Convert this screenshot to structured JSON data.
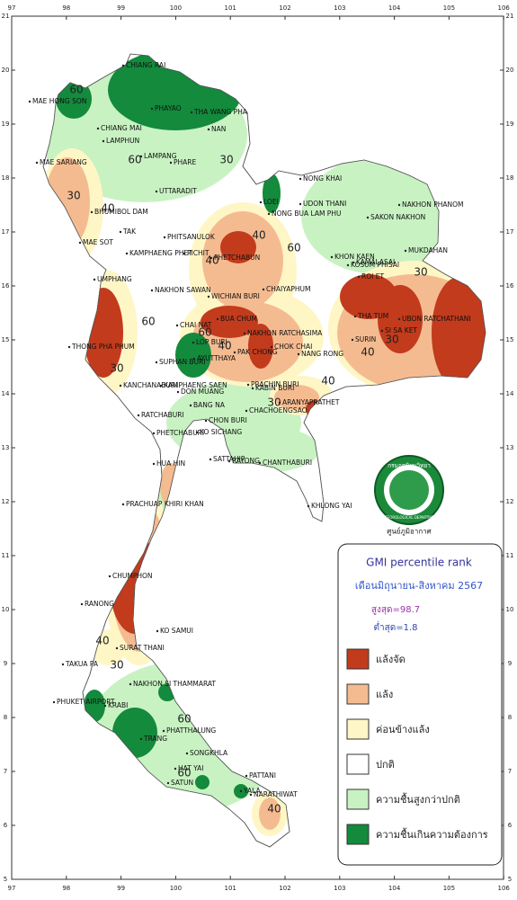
{
  "title": "GMI percentile rank",
  "period": "เดือนมิถุนายน-สิงหาคม 2567",
  "max_label": "สูงสุด=98.7",
  "min_label": "ต่ำสุด=1.8",
  "legend": [
    {
      "label": "แล้งจัด",
      "color": "#c23b1c"
    },
    {
      "label": "แล้ง",
      "color": "#f5bb90"
    },
    {
      "label": "ค่อนข้างแล้ง",
      "color": "#fff6c6"
    },
    {
      "label": "ปกติ",
      "color": "#ffffff"
    },
    {
      "label": "ความชื้นสูงกว่าปกติ",
      "color": "#c8f2c2"
    },
    {
      "label": "ความชื้นเกินความต้องการ",
      "color": "#138a3c"
    }
  ],
  "lon_ticks": [
    97,
    98,
    99,
    100,
    101,
    102,
    103,
    104,
    105,
    106
  ],
  "lat_ticks": [
    5,
    6,
    7,
    8,
    9,
    10,
    11,
    12,
    13,
    14,
    15,
    16,
    17,
    18,
    19,
    20,
    21
  ],
  "logo": {
    "name": "กรมอุตุนิยมวิทยา",
    "name_en": "METEOROLOGICAL DEPARTMENT",
    "center": "ศูนย์ภูมิอากาศ"
  },
  "stations": [
    "CHIANG RAI",
    "MAE HONG SON",
    "PHAYAO",
    "THA WANG PHA",
    "NAN",
    "CHIANG MAI",
    "LAMPHUN",
    "LAMPANG",
    "PHARE",
    "MAE SARIANG",
    "UTTARADIT",
    "NONG KHAI",
    "LOEI",
    "UDON THANI",
    "NONG BUA LAM PHU",
    "NAKHON PHANOM",
    "SAKON NAKHON",
    "BHUMIBOL DAM",
    "PHITSANULOK",
    "TAK",
    "MAE SOT",
    "KAMPHAENG PHET",
    "PICHIT",
    "PHETCHABUN",
    "MUKDAHAN",
    "KHON KAEN",
    "KOSUM PHISAI",
    "KAMALASAI",
    "ROI ET",
    "UMPHANG",
    "NAKHON SAWAN",
    "CHAIYAPHUM",
    "WICHIAN BURI",
    "BUA CHUM",
    "THA TUM",
    "UBON RATCHATHANI",
    "CHAI NAT",
    "THONG PHA PHUM",
    "LOP BURI",
    "NAKHON RATCHASIMA",
    "SURIN",
    "SI SA KET",
    "SUPHAN BURI",
    "AYUTTHAYA",
    "PAK CHONG",
    "CHOK CHAI",
    "NANG RONG",
    "KANCHANABURI",
    "KAMPHAENG SAEN",
    "DON MUANG",
    "PRACHIN BURI",
    "KABIN BURI",
    "BANG NA",
    "CHACHOENGSAO",
    "ARANYAPRATHET",
    "RATCHABURI",
    "CHON BURI",
    "PHETCHABURI",
    "KO SICHANG",
    "SATTAHIP",
    "RAYONG",
    "CHANTHABURI",
    "HUA HIN",
    "KHLONG YAI",
    "PRACHUAP KHIRI KHAN",
    "CHUMPHON",
    "RANONG",
    "KO SAMUI",
    "SURAT THANI",
    "TAKUA PA",
    "NAKHON SI THAMMARAT",
    "PHUKET AIRPORT",
    "KRABI",
    "TRANG",
    "PHATTHALUNG",
    "SONGKHLA",
    "HAT YAI",
    "PATTANI",
    "SATUN",
    "YALA",
    "NARATHIWAT"
  ],
  "contour_labels": [
    60,
    60,
    30,
    30,
    40,
    40,
    60,
    40,
    60,
    60,
    40,
    30,
    30,
    40,
    30,
    40,
    30,
    40,
    60,
    60,
    40,
    30
  ]
}
